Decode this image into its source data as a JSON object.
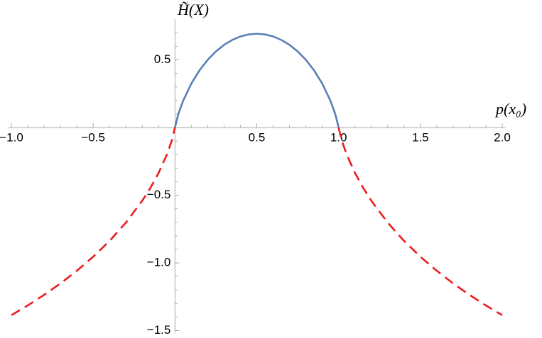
{
  "chart_data": {
    "type": "line",
    "ylabel": "H̃(X)",
    "xlabel": "p(x₀)",
    "xlim": [
      -1.02,
      2.02
    ],
    "ylim": [
      -1.52,
      0.8
    ],
    "xticks": [
      {
        "value": -1,
        "label": "−1.0"
      },
      {
        "value": -0.5,
        "label": "−0.5"
      },
      0.5,
      {
        "value": 1,
        "label": "1.0"
      },
      1.5,
      {
        "value": 2,
        "label": "2.0"
      }
    ],
    "xminorticks": [
      -0.9,
      -0.8,
      -0.7,
      -0.6,
      -0.4,
      -0.3,
      -0.2,
      -0.1,
      0.1,
      0.2,
      0.3,
      0.4,
      0.6,
      0.7,
      0.8,
      0.9,
      1.1,
      1.2,
      1.3,
      1.4,
      1.6,
      1.7,
      1.8,
      1.9
    ],
    "yticks": [
      0.5,
      {
        "value": -0.5,
        "label": "−0.5"
      },
      {
        "value": -1,
        "label": "−1.0"
      },
      {
        "value": -1.5,
        "label": "−1.5"
      }
    ],
    "yminorticks": [
      0.7,
      0.6,
      0.4,
      0.3,
      0.2,
      0.1,
      -0.1,
      -0.2,
      -0.3,
      -0.4,
      -0.6,
      -0.7,
      -0.8,
      -0.9,
      -1.1,
      -1.2,
      -1.3,
      -1.4
    ],
    "series": [
      {
        "color": "#5b7fb5",
        "dash": false,
        "x": [
          0,
          0.02,
          0.05,
          0.1,
          0.15,
          0.2,
          0.25,
          0.3,
          0.35,
          0.4,
          0.45,
          0.5,
          0.55,
          0.6,
          0.65,
          0.7,
          0.75,
          0.8,
          0.85,
          0.9,
          0.95,
          0.98,
          1
        ],
        "values": [
          0,
          0.098,
          0.1985,
          0.3251,
          0.4227,
          0.5004,
          0.5623,
          0.6109,
          0.6474,
          0.673,
          0.6881,
          0.6931,
          0.6881,
          0.673,
          0.6474,
          0.6109,
          0.5623,
          0.5004,
          0.4227,
          0.3251,
          0.1985,
          0.098,
          0
        ]
      },
      {
        "color": "#ee1c1c",
        "dash": true,
        "x": [
          -1,
          -0.9,
          -0.8,
          -0.7,
          -0.6,
          -0.5,
          -0.4,
          -0.3,
          -0.2,
          -0.15,
          -0.1,
          -0.05,
          -0.02,
          0
        ],
        "values": [
          -1.3863,
          -1.3144,
          -1.2365,
          -1.1518,
          -1.0585,
          -0.9548,
          -0.8376,
          -0.7023,
          -0.5407,
          -0.4453,
          -0.3351,
          -0.201,
          -0.0984,
          0
        ]
      },
      {
        "color": "#ee1c1c",
        "dash": true,
        "x": [
          1,
          1.02,
          1.05,
          1.1,
          1.15,
          1.2,
          1.3,
          1.4,
          1.5,
          1.6,
          1.7,
          1.8,
          1.9,
          2
        ],
        "values": [
          0,
          -0.0984,
          -0.201,
          -0.3351,
          -0.4453,
          -0.5407,
          -0.7023,
          -0.8376,
          -0.9548,
          -1.0585,
          -1.1518,
          -1.2365,
          -1.3144,
          -1.3863
        ]
      }
    ]
  }
}
